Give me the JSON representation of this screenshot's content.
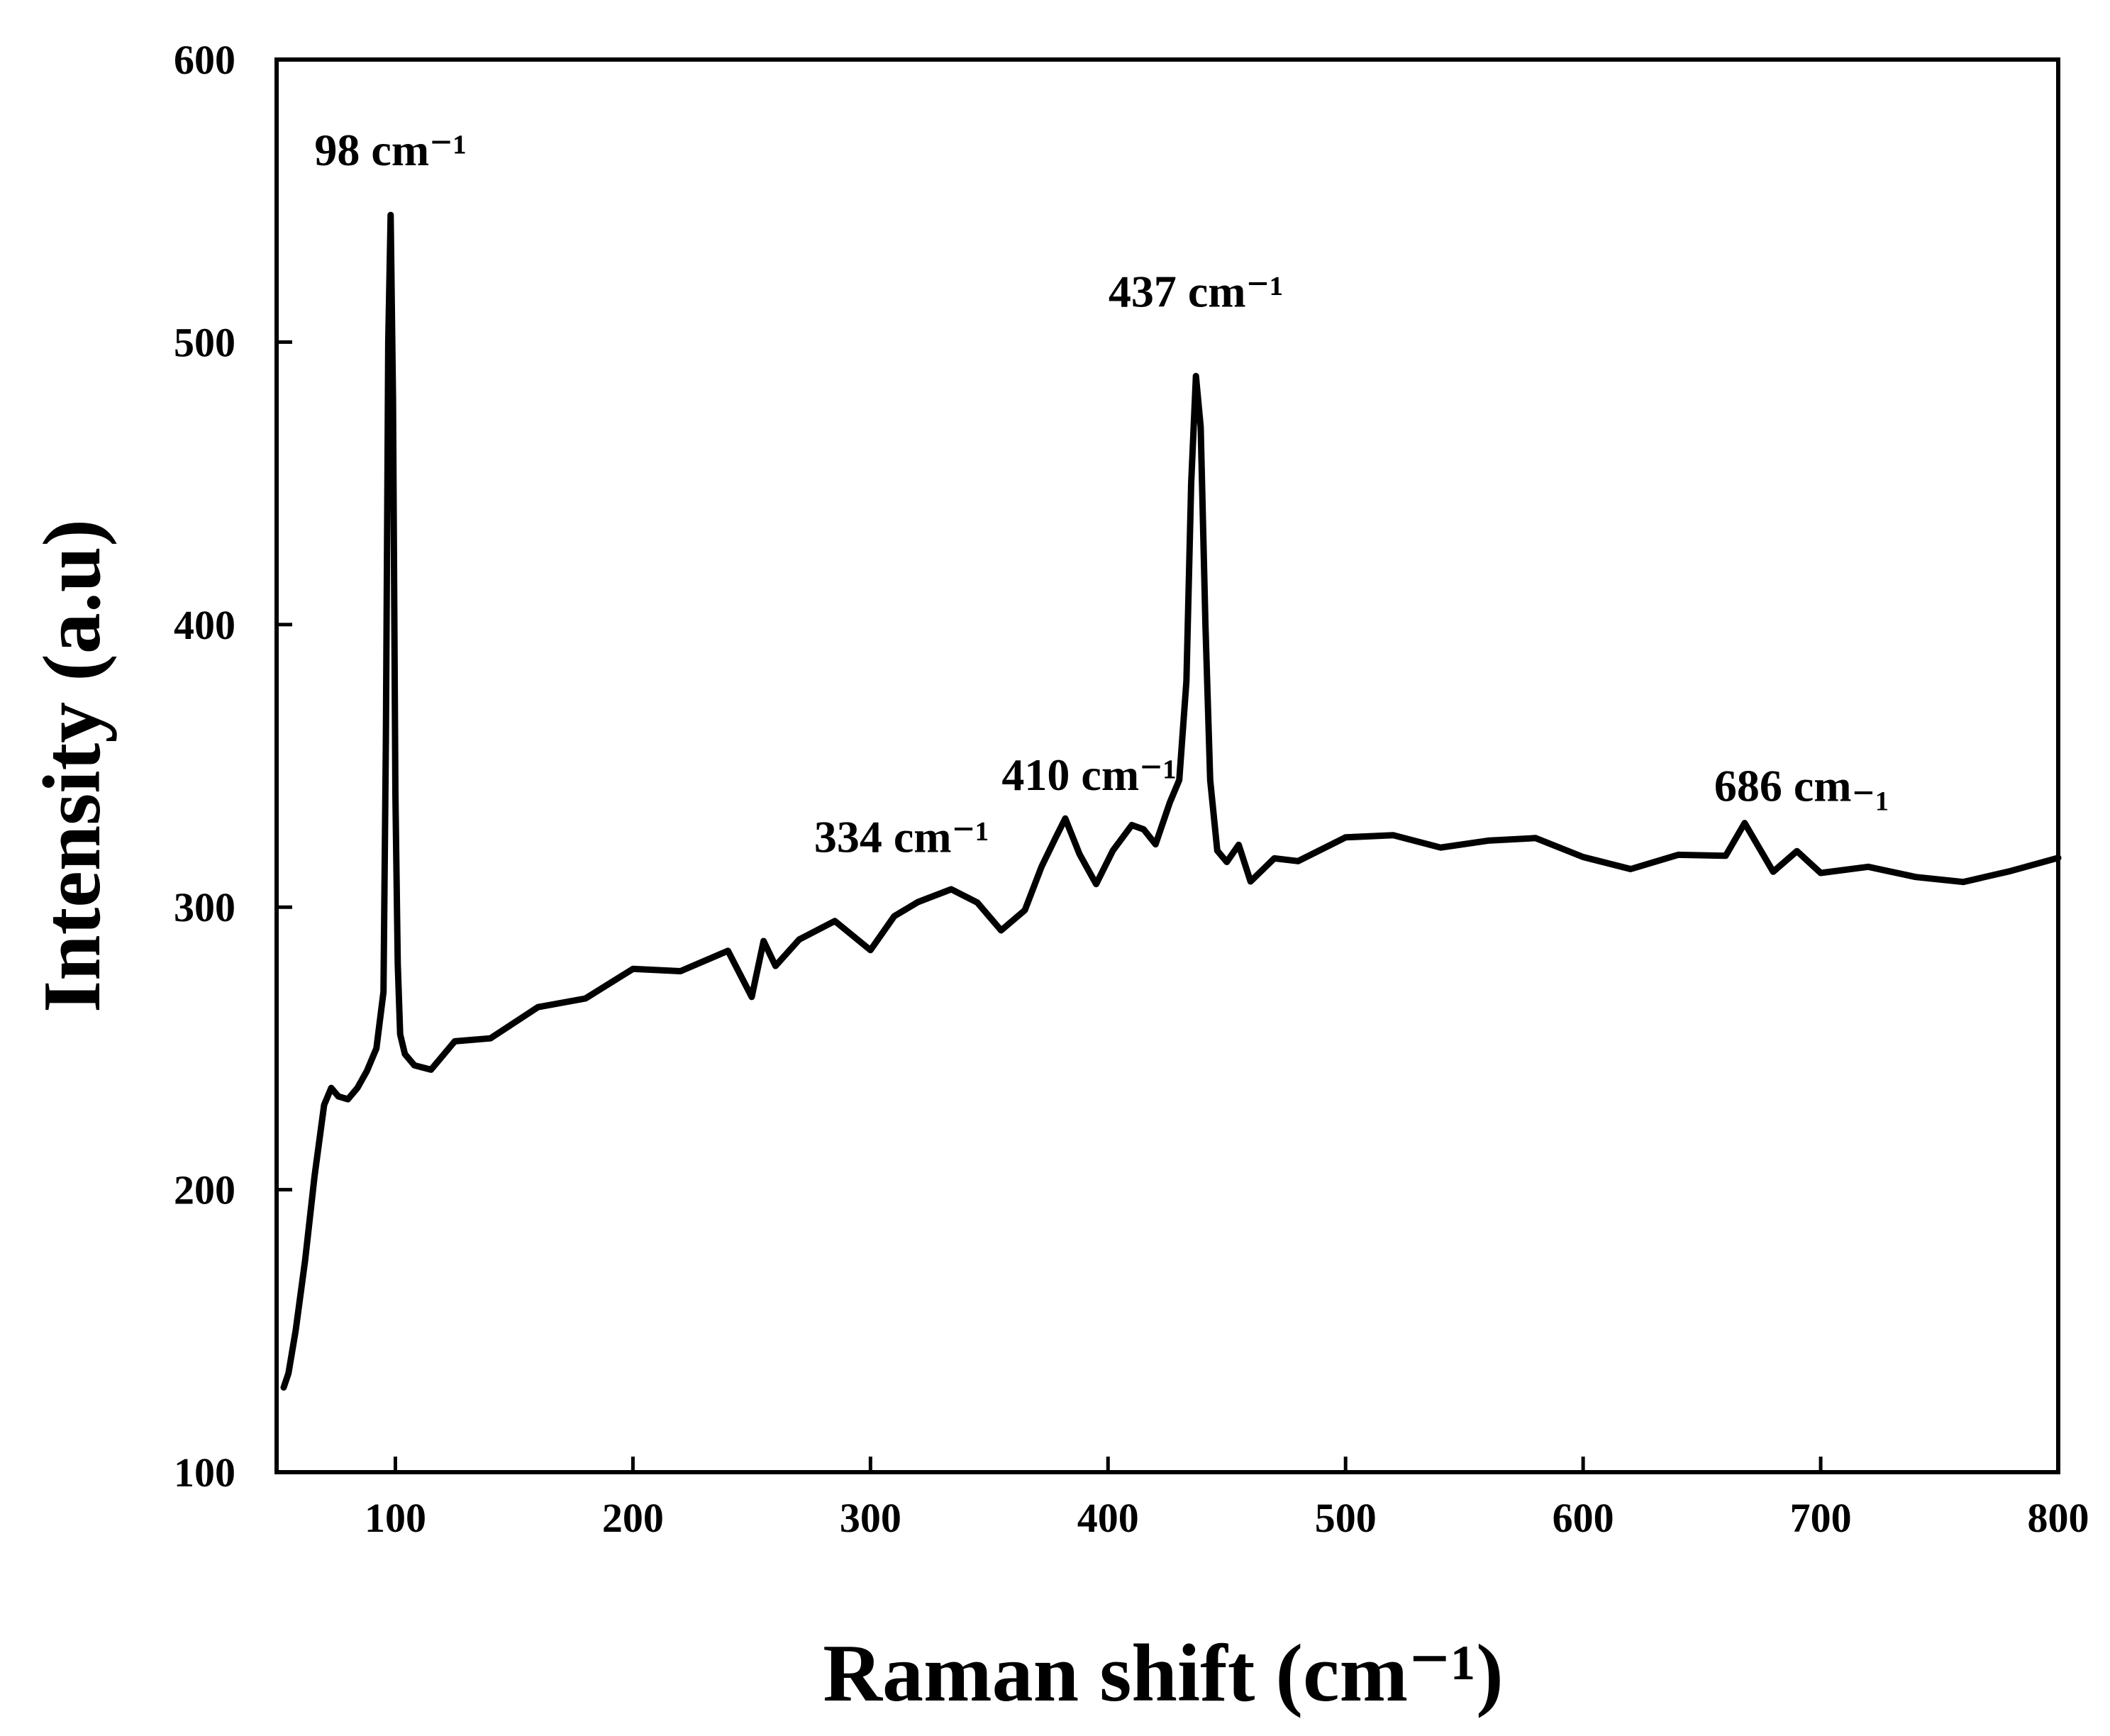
{
  "chart_data": {
    "type": "line",
    "title": "",
    "xlabel": "Raman shift (cm⁻¹)",
    "ylabel": "Intensity (a.u)",
    "xlim": [
      50,
      800
    ],
    "ylim": [
      100,
      600
    ],
    "x_ticks": [
      "100",
      "200",
      "300",
      "400",
      "500",
      "600",
      "700",
      "800"
    ],
    "y_ticks": [
      "100",
      "200",
      "300",
      "400",
      "500",
      "600"
    ],
    "grid": false,
    "legend": "none",
    "line_color": "#000000",
    "series": [
      {
        "x": [
          53,
          55,
          58,
          62,
          66,
          70,
          73,
          76,
          80,
          84,
          88,
          92,
          95,
          96,
          97,
          98,
          99,
          100,
          101,
          102,
          104,
          108,
          115,
          125,
          140,
          160,
          180,
          200,
          220,
          240,
          250,
          255,
          260,
          270,
          285,
          300,
          310,
          320,
          334,
          345,
          355,
          365,
          372,
          378,
          382,
          388,
          395,
          402,
          410,
          415,
          420,
          426,
          430,
          433,
          435,
          437,
          439,
          441,
          443,
          446,
          450,
          455,
          460,
          470,
          480,
          500,
          520,
          540,
          560,
          580,
          600,
          620,
          640,
          660,
          668,
          680,
          690,
          700,
          720,
          740,
          760,
          780,
          800
        ],
        "y": [
          130,
          135,
          150,
          175,
          205,
          230,
          236,
          233,
          232,
          236,
          242,
          250,
          270,
          360,
          500,
          545,
          480,
          340,
          280,
          255,
          248,
          244,
          245,
          248,
          255,
          260,
          266,
          272,
          278,
          282,
          275,
          280,
          285,
          287,
          290,
          292,
          295,
          300,
          308,
          303,
          300,
          302,
          308,
          318,
          322,
          320,
          318,
          322,
          330,
          324,
          325,
          330,
          345,
          380,
          450,
          488,
          470,
          400,
          345,
          320,
          316,
          315,
          316,
          318,
          320,
          322,
          323,
          320,
          318,
          317,
          316,
          315,
          318,
          320,
          326,
          320,
          322,
          318,
          315,
          312,
          311,
          309,
          310
        ]
      }
    ],
    "annotations": [
      {
        "text": "98 cm⁻¹",
        "x": 98,
        "y": 545
      },
      {
        "text": "437 cm⁻¹",
        "x": 437,
        "y": 492
      },
      {
        "text": "410 cm⁻¹",
        "x": 410,
        "y": 336
      },
      {
        "text": "334 cm⁻¹",
        "x": 334,
        "y": 312
      },
      {
        "text": "686 cm₋₁",
        "x": 686,
        "y": 330
      }
    ]
  }
}
